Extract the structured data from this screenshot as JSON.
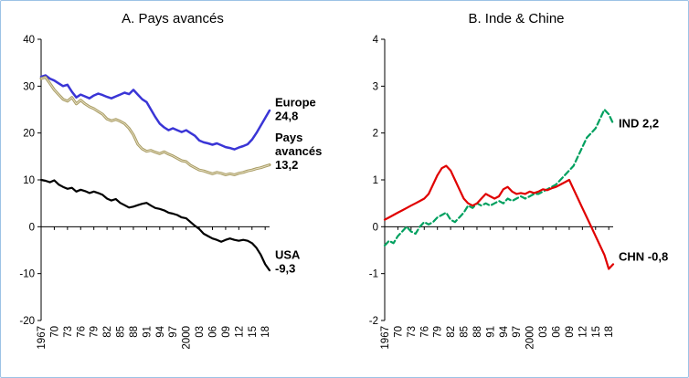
{
  "figure": {
    "border_color": "#9cc2e5",
    "background": "#ffffff"
  },
  "chart_data": [
    {
      "type": "line",
      "title": "A. Pays avancés",
      "ylim": [
        -20,
        40
      ],
      "yticks": [
        40,
        30,
        20,
        10,
        0,
        -10,
        -20
      ],
      "grid": false,
      "x": {
        "start": 1967,
        "end": 2019,
        "step": 1
      },
      "x_ticks": [
        1967,
        1970,
        1973,
        1976,
        1979,
        1982,
        1985,
        1988,
        1991,
        1994,
        1997,
        2000,
        2003,
        2006,
        2009,
        2012,
        2015,
        2018
      ],
      "x_tick_labels": [
        "1967",
        "70",
        "73",
        "76",
        "79",
        "82",
        "85",
        "88",
        "91",
        "94",
        "97",
        "2000",
        "03",
        "06",
        "09",
        "12",
        "15",
        "18"
      ],
      "series": [
        {
          "name": "Europe",
          "color": "#3a35d6",
          "width": 2.5,
          "dash": null,
          "annotation": {
            "lines": [
              "Europe",
              "24,8"
            ],
            "y": 25
          },
          "values": [
            32.0,
            32.3,
            31.6,
            31.2,
            30.6,
            30.0,
            30.3,
            28.8,
            27.6,
            28.2,
            27.8,
            27.4,
            28.0,
            28.4,
            28.1,
            27.7,
            27.4,
            27.8,
            28.2,
            28.6,
            28.3,
            29.2,
            28.2,
            27.2,
            26.6,
            25.0,
            23.4,
            22.0,
            21.2,
            20.6,
            21.0,
            20.6,
            20.2,
            20.6,
            20.0,
            19.4,
            18.4,
            18.0,
            17.8,
            17.5,
            17.8,
            17.4,
            17.0,
            16.8,
            16.5,
            16.9,
            17.2,
            17.6,
            18.6,
            20.0,
            21.6,
            23.2,
            24.8
          ]
        },
        {
          "name": "Pays avancés",
          "color": "#a79a60",
          "overlay_color": "#e3dcc0",
          "width": 3,
          "dash": null,
          "annotation": {
            "lines": [
              "Pays",
              "avancés",
              "13,2"
            ],
            "y": 16
          },
          "values": [
            31.6,
            31.9,
            30.6,
            29.2,
            28.2,
            27.2,
            26.8,
            27.6,
            26.2,
            27.0,
            26.2,
            25.6,
            25.2,
            24.6,
            24.0,
            23.0,
            22.6,
            22.9,
            22.5,
            22.0,
            21.0,
            19.6,
            17.6,
            16.6,
            16.1,
            16.3,
            15.9,
            15.6,
            16.0,
            15.5,
            15.1,
            14.6,
            14.1,
            13.9,
            13.1,
            12.6,
            12.1,
            11.9,
            11.6,
            11.3,
            11.6,
            11.4,
            11.1,
            11.3,
            11.1,
            11.4,
            11.6,
            11.9,
            12.1,
            12.4,
            12.6,
            12.9,
            13.2
          ]
        },
        {
          "name": "USA",
          "color": "#000000",
          "width": 2.2,
          "dash": null,
          "annotation": {
            "lines": [
              "USA",
              "-9,3"
            ],
            "y": -7.5
          },
          "values": [
            10.0,
            9.8,
            9.5,
            9.9,
            9.0,
            8.5,
            8.1,
            8.3,
            7.5,
            7.9,
            7.6,
            7.2,
            7.5,
            7.2,
            6.8,
            6.0,
            5.6,
            5.9,
            5.1,
            4.6,
            4.1,
            4.3,
            4.6,
            4.9,
            5.1,
            4.5,
            4.0,
            3.8,
            3.5,
            3.0,
            2.8,
            2.5,
            2.0,
            1.8,
            1.0,
            0.2,
            -0.5,
            -1.5,
            -2.0,
            -2.5,
            -2.8,
            -3.2,
            -2.8,
            -2.5,
            -2.8,
            -3.0,
            -2.8,
            -3.0,
            -3.5,
            -4.5,
            -6.0,
            -8.0,
            -9.3
          ]
        }
      ]
    },
    {
      "type": "line",
      "title": "B. Inde & Chine",
      "ylim": [
        -2,
        4
      ],
      "yticks": [
        4,
        3,
        2,
        1,
        0,
        -1,
        -2
      ],
      "grid": false,
      "x": {
        "start": 1967,
        "end": 2019,
        "step": 1
      },
      "x_ticks": [
        1967,
        1970,
        1973,
        1976,
        1979,
        1982,
        1985,
        1988,
        1991,
        1994,
        1997,
        2000,
        2003,
        2006,
        2009,
        2012,
        2015,
        2018
      ],
      "x_tick_labels": [
        "1967",
        "70",
        "73",
        "76",
        "79",
        "82",
        "85",
        "88",
        "91",
        "94",
        "97",
        "2000",
        "03",
        "06",
        "09",
        "12",
        "15",
        "18"
      ],
      "series": [
        {
          "name": "IND",
          "color": "#00a05f",
          "width": 2.2,
          "dash": "6 3.5",
          "annotation": {
            "lines": [
              "IND 2,2"
            ],
            "y": 2.2
          },
          "values": [
            -0.4,
            -0.3,
            -0.35,
            -0.2,
            -0.1,
            0.0,
            -0.1,
            -0.15,
            0.0,
            0.1,
            0.05,
            0.1,
            0.2,
            0.25,
            0.3,
            0.15,
            0.1,
            0.2,
            0.3,
            0.45,
            0.4,
            0.5,
            0.45,
            0.5,
            0.45,
            0.5,
            0.55,
            0.5,
            0.6,
            0.55,
            0.6,
            0.65,
            0.6,
            0.65,
            0.7,
            0.7,
            0.75,
            0.8,
            0.85,
            0.9,
            1.0,
            1.1,
            1.2,
            1.3,
            1.5,
            1.7,
            1.9,
            2.0,
            2.1,
            2.3,
            2.5,
            2.4,
            2.2
          ]
        },
        {
          "name": "CHN",
          "color": "#e00000",
          "width": 2.2,
          "dash": null,
          "annotation": {
            "lines": [
              "CHN -0,8"
            ],
            "y": -0.65
          },
          "values": [
            0.15,
            0.2,
            0.25,
            0.3,
            0.35,
            0.4,
            0.45,
            0.5,
            0.55,
            0.6,
            0.7,
            0.9,
            1.1,
            1.25,
            1.3,
            1.2,
            1.0,
            0.8,
            0.6,
            0.5,
            0.45,
            0.5,
            0.6,
            0.7,
            0.65,
            0.6,
            0.65,
            0.8,
            0.85,
            0.75,
            0.7,
            0.72,
            0.7,
            0.75,
            0.72,
            0.75,
            0.8,
            0.78,
            0.82,
            0.85,
            0.9,
            0.95,
            1.0,
            0.8,
            0.6,
            0.4,
            0.2,
            0.0,
            -0.2,
            -0.4,
            -0.6,
            -0.9,
            -0.8
          ]
        }
      ]
    }
  ]
}
